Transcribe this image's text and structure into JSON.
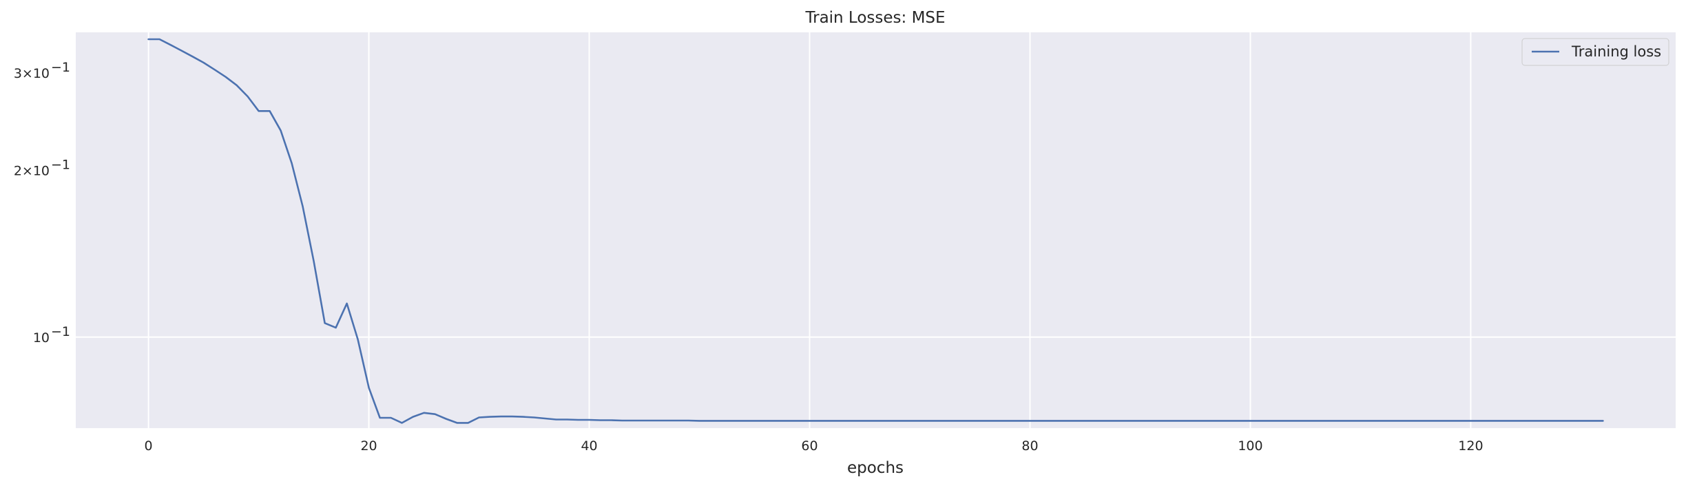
{
  "chart_data": {
    "type": "line",
    "title": "Train Losses:  MSE",
    "xlabel": "epochs",
    "ylabel": "",
    "y_scale": "log",
    "xlim": [
      -6.6,
      138.6
    ],
    "ylim": [
      0.0685,
      0.355
    ],
    "x_ticks": [
      0,
      20,
      40,
      60,
      80,
      100,
      120
    ],
    "y_ticks": [
      {
        "value": 0.3,
        "mantissa": "3",
        "base": "10",
        "exp": "−1"
      },
      {
        "value": 0.2,
        "mantissa": "2",
        "base": "10",
        "exp": "−1"
      },
      {
        "value": 0.1,
        "mantissa": "",
        "base": "10",
        "exp": "−1"
      }
    ],
    "grid": true,
    "legend_position": "top-right",
    "colors": {
      "background": "#eaeaf2",
      "grid": "#ffffff",
      "series": "#4c72b0"
    },
    "series": [
      {
        "name": "Training loss",
        "x": [
          0,
          1,
          2,
          3,
          4,
          5,
          6,
          7,
          8,
          9,
          10,
          11,
          12,
          13,
          14,
          15,
          16,
          17,
          18,
          19,
          20,
          21,
          22,
          23,
          24,
          25,
          26,
          27,
          28,
          29,
          30,
          31,
          32,
          33,
          34,
          35,
          36,
          37,
          38,
          39,
          40,
          41,
          42,
          43,
          44,
          45,
          46,
          47,
          48,
          49,
          50,
          51,
          52,
          53,
          54,
          55,
          56,
          57,
          58,
          59,
          60,
          61,
          62,
          63,
          64,
          65,
          66,
          67,
          68,
          69,
          70,
          71,
          72,
          73,
          74,
          75,
          76,
          77,
          78,
          79,
          80,
          81,
          82,
          83,
          84,
          85,
          86,
          87,
          88,
          89,
          90,
          91,
          92,
          93,
          94,
          95,
          96,
          97,
          98,
          99,
          100,
          101,
          102,
          103,
          104,
          105,
          106,
          107,
          108,
          109,
          110,
          111,
          112,
          113,
          114,
          115,
          116,
          117,
          118,
          119,
          120,
          121,
          122,
          123,
          124,
          125,
          126,
          127,
          128,
          129,
          130,
          131,
          132
        ],
        "values": [
          0.345,
          0.345,
          0.337,
          0.329,
          0.321,
          0.313,
          0.304,
          0.295,
          0.285,
          0.272,
          0.256,
          0.256,
          0.236,
          0.206,
          0.172,
          0.137,
          0.106,
          0.104,
          0.115,
          0.099,
          0.081,
          0.0715,
          0.0715,
          0.07,
          0.0718,
          0.073,
          0.0726,
          0.0712,
          0.07,
          0.07,
          0.0716,
          0.0718,
          0.0719,
          0.0719,
          0.0718,
          0.0716,
          0.0713,
          0.071,
          0.071,
          0.0709,
          0.0709,
          0.0708,
          0.0708,
          0.0707,
          0.0707,
          0.0707,
          0.0707,
          0.0707,
          0.0707,
          0.0707,
          0.0706,
          0.0706,
          0.0706,
          0.0706,
          0.0706,
          0.0706,
          0.0706,
          0.0706,
          0.0706,
          0.0706,
          0.0706,
          0.0706,
          0.0706,
          0.0706,
          0.0706,
          0.0706,
          0.0706,
          0.0706,
          0.0706,
          0.0706,
          0.0706,
          0.0706,
          0.0706,
          0.0706,
          0.0706,
          0.0706,
          0.0706,
          0.0706,
          0.0706,
          0.0706,
          0.0706,
          0.0706,
          0.0706,
          0.0706,
          0.0706,
          0.0706,
          0.0706,
          0.0706,
          0.0706,
          0.0706,
          0.0706,
          0.0706,
          0.0706,
          0.0706,
          0.0706,
          0.0706,
          0.0706,
          0.0706,
          0.0706,
          0.0706,
          0.0706,
          0.0706,
          0.0706,
          0.0706,
          0.0706,
          0.0706,
          0.0706,
          0.0706,
          0.0706,
          0.0706,
          0.0706,
          0.0706,
          0.0706,
          0.0706,
          0.0706,
          0.0706,
          0.0706,
          0.0706,
          0.0706,
          0.0706,
          0.0706,
          0.0706,
          0.0706,
          0.0706,
          0.0706,
          0.0706,
          0.0706,
          0.0706,
          0.0706,
          0.0706,
          0.0706,
          0.0706,
          0.0706
        ]
      }
    ]
  }
}
